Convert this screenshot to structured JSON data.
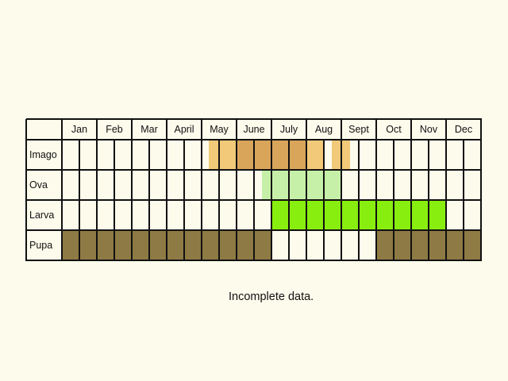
{
  "chart_data": {
    "type": "table",
    "title": "",
    "months": [
      "Jan",
      "Feb",
      "Mar",
      "April",
      "May",
      "June",
      "July",
      "Aug",
      "Sept",
      "Oct",
      "Nov",
      "Dec"
    ],
    "stages": [
      "Imago",
      "Ova",
      "Larva",
      "Pupa"
    ],
    "half_month_resolution": true,
    "series": [
      {
        "name": "Imago",
        "segments": [
          {
            "start": 4.2,
            "end": 5.0,
            "color": "#f2c979",
            "level": "occasional"
          },
          {
            "start": 5.0,
            "end": 7.0,
            "color": "#d9a55a",
            "level": "common"
          },
          {
            "start": 7.0,
            "end": 7.5,
            "color": "#f2c979",
            "level": "occasional"
          },
          {
            "start": 7.73,
            "end": 8.25,
            "color": "#f2c979",
            "level": "occasional"
          }
        ]
      },
      {
        "name": "Ova",
        "segments": [
          {
            "start": 5.73,
            "end": 8.0,
            "color": "#c6f0a8",
            "level": "occasional"
          }
        ]
      },
      {
        "name": "Larva",
        "segments": [
          {
            "start": 6.0,
            "end": 11.0,
            "color": "#88ee0f",
            "level": "common"
          }
        ]
      },
      {
        "name": "Pupa",
        "segments": [
          {
            "start": 0.0,
            "end": 6.0,
            "color": "#8e7a44",
            "level": "common"
          },
          {
            "start": 9.0,
            "end": 12.0,
            "color": "#8e7a44",
            "level": "common"
          }
        ]
      }
    ],
    "note": "Incomplete data."
  },
  "colors": {
    "background": "#fdfbec",
    "cell": "#fdfbec",
    "grid": "#111111"
  },
  "note": "Incomplete data."
}
